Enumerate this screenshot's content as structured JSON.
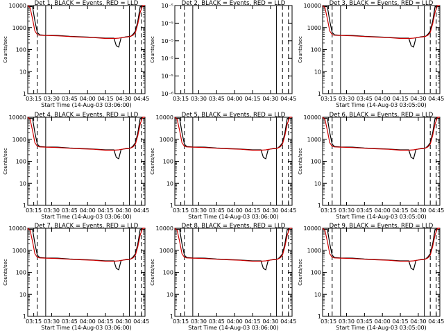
{
  "figure": {
    "xtick_labels": [
      "03:15",
      "03:30",
      "03:45",
      "04:00",
      "04:15",
      "04:30",
      "04:45"
    ],
    "x_ticks_min": [
      195,
      210,
      225,
      240,
      255,
      270,
      285
    ],
    "xrange_min": [
      190,
      288
    ],
    "dashed_lines_min": [
      198,
      280,
      285
    ],
    "solid_lines_min": [
      205,
      275
    ],
    "colors": {
      "events": "#000000",
      "lld": "#cc0000",
      "frame": "#000000"
    }
  },
  "chart_data": [
    {
      "type": "line",
      "panel": "det-1",
      "title": "Det 1, BLACK = Events, RED = LLD",
      "xlabel": "Start Time (14-Aug-03 03:06:00)",
      "ylabel": "Counts/sec",
      "ylim": [
        1,
        10000
      ],
      "yscale": "log",
      "ytick_labels": [
        "1",
        "10",
        "100",
        "1000",
        "10000"
      ],
      "series": [
        {
          "name": "Events",
          "color": "#000000",
          "x": [
            191,
            194,
            196,
            198,
            200,
            205,
            215,
            225,
            235,
            245,
            255,
            262,
            264,
            266,
            268,
            270,
            272,
            276,
            278,
            280,
            282,
            284,
            286,
            288
          ],
          "y": [
            9000,
            9000,
            2000,
            600,
            470,
            450,
            440,
            400,
            380,
            360,
            330,
            330,
            150,
            130,
            340,
            360,
            380,
            400,
            500,
            700,
            2000,
            9000,
            9000,
            9000
          ]
        },
        {
          "name": "LLD",
          "color": "#cc0000",
          "x": [
            190,
            192,
            194,
            196,
            198,
            200,
            205,
            215,
            225,
            235,
            245,
            255,
            262,
            266,
            270,
            274,
            276,
            278,
            280,
            282,
            284,
            286,
            288
          ],
          "y": [
            10000,
            8000,
            2500,
            700,
            480,
            450,
            440,
            420,
            390,
            370,
            350,
            320,
            320,
            330,
            360,
            380,
            400,
            450,
            600,
            1500,
            5000,
            10000,
            10000
          ]
        }
      ]
    },
    {
      "type": "line",
      "panel": "det-2",
      "title": "Det 2, BLACK = Events, RED = LLD",
      "xlabel": "",
      "ylabel": "Counts/sec",
      "ylim": [
        1e-06,
        1e-05
      ],
      "yscale": "log",
      "ytick_labels": [
        "10⁻⁶",
        "10⁻⁵",
        "10⁻⁵",
        "10⁻⁵",
        "10⁻⁵",
        "10⁻⁵"
      ],
      "series": []
    },
    {
      "type": "line",
      "panel": "det-3",
      "title": "Det 3, BLACK = Events, RED = LLD",
      "xlabel": "Start Time (14-Aug-03 03:05:00)",
      "ylabel": "Counts/sec",
      "ylim": [
        1,
        10000
      ],
      "yscale": "log",
      "ytick_labels": [
        "1",
        "10",
        "100",
        "1000",
        "10000"
      ],
      "series": [
        {
          "name": "Events",
          "color": "#000000",
          "x": [
            191,
            194,
            196,
            198,
            200,
            205,
            215,
            225,
            235,
            245,
            255,
            262,
            264,
            266,
            268,
            270,
            272,
            276,
            278,
            280,
            282,
            284,
            286,
            288
          ],
          "y": [
            9000,
            9000,
            2000,
            600,
            470,
            450,
            440,
            400,
            380,
            360,
            330,
            330,
            150,
            130,
            340,
            360,
            380,
            400,
            500,
            700,
            2000,
            9000,
            9000,
            9000
          ]
        },
        {
          "name": "LLD",
          "color": "#cc0000",
          "x": [
            190,
            192,
            194,
            196,
            198,
            200,
            205,
            215,
            225,
            235,
            245,
            255,
            262,
            266,
            270,
            274,
            276,
            278,
            280,
            282,
            284,
            286,
            288
          ],
          "y": [
            10000,
            8000,
            2500,
            700,
            480,
            450,
            440,
            420,
            390,
            370,
            350,
            320,
            320,
            330,
            360,
            380,
            400,
            450,
            600,
            1500,
            5000,
            10000,
            10000
          ]
        }
      ]
    },
    {
      "type": "line",
      "panel": "det-4",
      "title": "Det 4, BLACK = Events, RED = LLD",
      "xlabel": "Start Time (14-Aug-03 03:06:00)",
      "ylabel": "Counts/sec",
      "ylim": [
        1,
        10000
      ],
      "yscale": "log",
      "ytick_labels": [
        "1",
        "10",
        "100",
        "1000",
        "10000"
      ],
      "series": [
        {
          "name": "Events",
          "color": "#000000",
          "x": [
            191,
            194,
            196,
            198,
            200,
            205,
            215,
            225,
            235,
            245,
            255,
            262,
            264,
            266,
            268,
            270,
            272,
            276,
            278,
            280,
            282,
            284,
            286,
            288
          ],
          "y": [
            9000,
            9000,
            2000,
            600,
            470,
            450,
            440,
            400,
            380,
            360,
            330,
            330,
            150,
            130,
            340,
            360,
            380,
            400,
            500,
            700,
            2000,
            9000,
            9000,
            9000
          ]
        },
        {
          "name": "LLD",
          "color": "#cc0000",
          "x": [
            190,
            192,
            194,
            196,
            198,
            200,
            205,
            215,
            225,
            235,
            245,
            255,
            262,
            266,
            270,
            274,
            276,
            278,
            280,
            282,
            284,
            286,
            288
          ],
          "y": [
            10000,
            8000,
            2500,
            700,
            480,
            450,
            440,
            420,
            390,
            370,
            350,
            320,
            320,
            330,
            360,
            380,
            400,
            450,
            600,
            1500,
            5000,
            10000,
            10000
          ]
        }
      ]
    },
    {
      "type": "line",
      "panel": "det-5",
      "title": "Det 5, BLACK = Events, RED = LLD",
      "xlabel": "Start Time (14-Aug-03 03:06:00)",
      "ylabel": "Counts/sec",
      "ylim": [
        1,
        10000
      ],
      "yscale": "log",
      "ytick_labels": [
        "1",
        "10",
        "100",
        "1000",
        "10000"
      ],
      "series": [
        {
          "name": "Events",
          "color": "#000000",
          "x": [
            191,
            194,
            196,
            198,
            200,
            205,
            215,
            225,
            235,
            245,
            255,
            262,
            264,
            266,
            268,
            270,
            272,
            276,
            278,
            280,
            282,
            284,
            286,
            288
          ],
          "y": [
            9000,
            9000,
            2000,
            600,
            470,
            450,
            440,
            400,
            380,
            360,
            330,
            330,
            150,
            130,
            340,
            360,
            380,
            400,
            500,
            700,
            2000,
            9000,
            9000,
            9000
          ]
        },
        {
          "name": "LLD",
          "color": "#cc0000",
          "x": [
            190,
            192,
            194,
            196,
            198,
            200,
            205,
            215,
            225,
            235,
            245,
            255,
            262,
            266,
            270,
            274,
            276,
            278,
            280,
            282,
            284,
            286,
            288
          ],
          "y": [
            10000,
            8000,
            2500,
            700,
            480,
            450,
            440,
            420,
            390,
            370,
            350,
            320,
            320,
            330,
            360,
            380,
            400,
            450,
            600,
            1500,
            5000,
            10000,
            10000
          ]
        }
      ]
    },
    {
      "type": "line",
      "panel": "det-6",
      "title": "Det 6, BLACK = Events, RED = LLD",
      "xlabel": "Start Time (14-Aug-03 03:05:00)",
      "ylabel": "Counts/sec",
      "ylim": [
        1,
        10000
      ],
      "yscale": "log",
      "ytick_labels": [
        "1",
        "10",
        "100",
        "1000",
        "10000"
      ],
      "series": [
        {
          "name": "Events",
          "color": "#000000",
          "x": [
            191,
            194,
            196,
            198,
            200,
            205,
            215,
            225,
            235,
            245,
            255,
            262,
            264,
            266,
            268,
            270,
            272,
            276,
            278,
            280,
            282,
            284,
            286,
            288
          ],
          "y": [
            9000,
            9000,
            2000,
            600,
            470,
            450,
            440,
            400,
            380,
            360,
            330,
            330,
            150,
            130,
            340,
            360,
            380,
            400,
            500,
            700,
            2000,
            9000,
            9000,
            9000
          ]
        },
        {
          "name": "LLD",
          "color": "#cc0000",
          "x": [
            190,
            192,
            194,
            196,
            198,
            200,
            205,
            215,
            225,
            235,
            245,
            255,
            262,
            266,
            270,
            274,
            276,
            278,
            280,
            282,
            284,
            286,
            288
          ],
          "y": [
            10000,
            8000,
            2500,
            700,
            480,
            450,
            440,
            420,
            390,
            370,
            350,
            320,
            320,
            330,
            360,
            380,
            400,
            450,
            600,
            1500,
            5000,
            10000,
            10000
          ]
        }
      ]
    },
    {
      "type": "line",
      "panel": "det-7",
      "title": "Det 7, BLACK = Events, RED = LLD",
      "xlabel": "Start Time (14-Aug-03 03:06:00)",
      "ylabel": "Counts/sec",
      "ylim": [
        1,
        10000
      ],
      "yscale": "log",
      "ytick_labels": [
        "1",
        "10",
        "100",
        "1000",
        "10000"
      ],
      "series": [
        {
          "name": "Events",
          "color": "#000000",
          "x": [
            191,
            194,
            196,
            198,
            200,
            205,
            215,
            225,
            235,
            245,
            255,
            262,
            264,
            266,
            268,
            270,
            272,
            276,
            278,
            280,
            282,
            284,
            286,
            288
          ],
          "y": [
            9000,
            9000,
            2000,
            600,
            470,
            450,
            440,
            400,
            380,
            360,
            330,
            330,
            150,
            130,
            340,
            360,
            380,
            400,
            500,
            700,
            2000,
            9000,
            9000,
            9000
          ]
        },
        {
          "name": "LLD",
          "color": "#cc0000",
          "x": [
            190,
            192,
            194,
            196,
            198,
            200,
            205,
            215,
            225,
            235,
            245,
            255,
            262,
            266,
            270,
            274,
            276,
            278,
            280,
            282,
            284,
            286,
            288
          ],
          "y": [
            10000,
            8000,
            2500,
            700,
            480,
            450,
            440,
            420,
            390,
            370,
            350,
            320,
            320,
            330,
            360,
            380,
            400,
            450,
            600,
            1500,
            5000,
            10000,
            10000
          ]
        }
      ]
    },
    {
      "type": "line",
      "panel": "det-8",
      "title": "Det 8, BLACK = Events, RED = LLD",
      "xlabel": "Start Time (14-Aug-03 03:06:00)",
      "ylabel": "Counts/sec",
      "ylim": [
        1,
        10000
      ],
      "yscale": "log",
      "ytick_labels": [
        "1",
        "10",
        "100",
        "1000",
        "10000"
      ],
      "series": [
        {
          "name": "Events",
          "color": "#000000",
          "x": [
            191,
            194,
            196,
            198,
            200,
            205,
            215,
            225,
            235,
            245,
            255,
            262,
            264,
            266,
            268,
            270,
            272,
            276,
            278,
            280,
            282,
            284,
            286,
            288
          ],
          "y": [
            9000,
            9000,
            2000,
            600,
            470,
            450,
            440,
            400,
            380,
            360,
            330,
            330,
            150,
            130,
            340,
            360,
            380,
            400,
            500,
            700,
            2000,
            9000,
            9000,
            9000
          ]
        },
        {
          "name": "LLD",
          "color": "#cc0000",
          "x": [
            190,
            192,
            194,
            196,
            198,
            200,
            205,
            215,
            225,
            235,
            245,
            255,
            262,
            266,
            270,
            274,
            276,
            278,
            280,
            282,
            284,
            286,
            288
          ],
          "y": [
            10000,
            8000,
            2500,
            700,
            480,
            450,
            440,
            420,
            390,
            370,
            350,
            320,
            320,
            330,
            360,
            380,
            400,
            450,
            600,
            1500,
            5000,
            10000,
            10000
          ]
        }
      ]
    },
    {
      "type": "line",
      "panel": "det-9",
      "title": "Det 9, BLACK = Events, RED = LLD",
      "xlabel": "Start Time (14-Aug-03 03:05:00)",
      "ylabel": "Counts/sec",
      "ylim": [
        1,
        10000
      ],
      "yscale": "log",
      "ytick_labels": [
        "1",
        "10",
        "100",
        "1000",
        "10000"
      ],
      "series": [
        {
          "name": "Events",
          "color": "#000000",
          "x": [
            191,
            194,
            196,
            198,
            200,
            205,
            215,
            225,
            235,
            245,
            255,
            262,
            264,
            266,
            268,
            270,
            272,
            276,
            278,
            280,
            282,
            284,
            286,
            288
          ],
          "y": [
            9000,
            9000,
            2000,
            600,
            470,
            450,
            440,
            400,
            380,
            360,
            330,
            330,
            150,
            130,
            340,
            360,
            380,
            400,
            500,
            700,
            2000,
            9000,
            9000,
            9000
          ]
        },
        {
          "name": "LLD",
          "color": "#cc0000",
          "x": [
            190,
            192,
            194,
            196,
            198,
            200,
            205,
            215,
            225,
            235,
            245,
            255,
            262,
            266,
            270,
            274,
            276,
            278,
            280,
            282,
            284,
            286,
            288
          ],
          "y": [
            10000,
            8000,
            2500,
            700,
            480,
            450,
            440,
            420,
            390,
            370,
            350,
            320,
            320,
            330,
            360,
            380,
            400,
            450,
            600,
            1500,
            5000,
            10000,
            10000
          ]
        }
      ]
    }
  ]
}
